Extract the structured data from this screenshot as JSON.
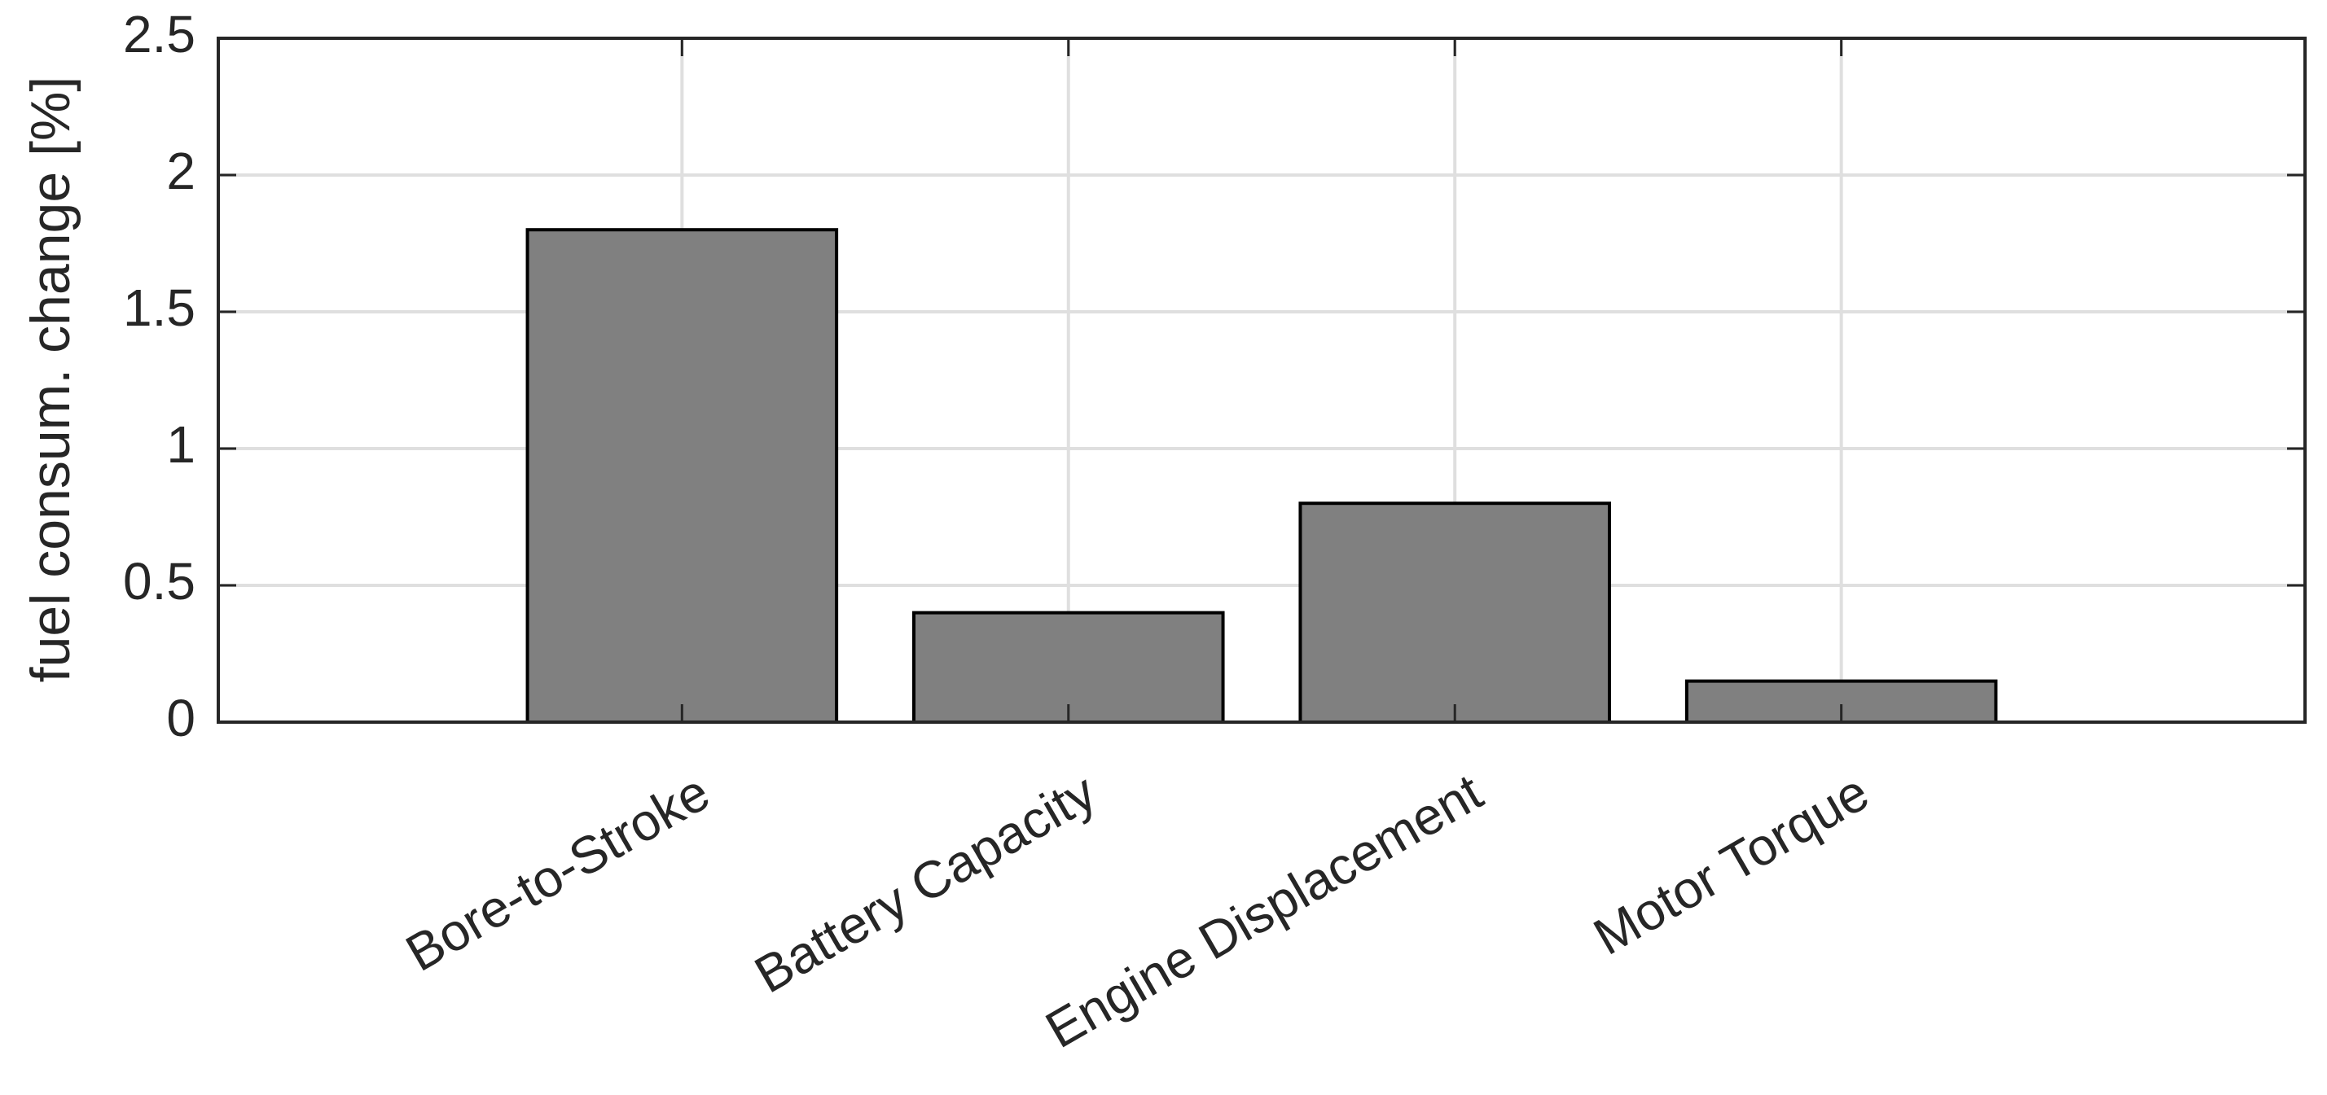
{
  "chart_data": {
    "type": "bar",
    "y_label": "fuel consum. change [%]",
    "categories": [
      "Bore-to-Stroke",
      "Battery Capacity",
      "Engine Displacement",
      "Motor Torque"
    ],
    "values": [
      1.8,
      0.4,
      0.8,
      0.15
    ],
    "color": "#808080",
    "ylim": [
      0,
      2.5
    ],
    "yticks": [
      0,
      0.5,
      1,
      1.5,
      2,
      2.5
    ],
    "grid": true
  }
}
